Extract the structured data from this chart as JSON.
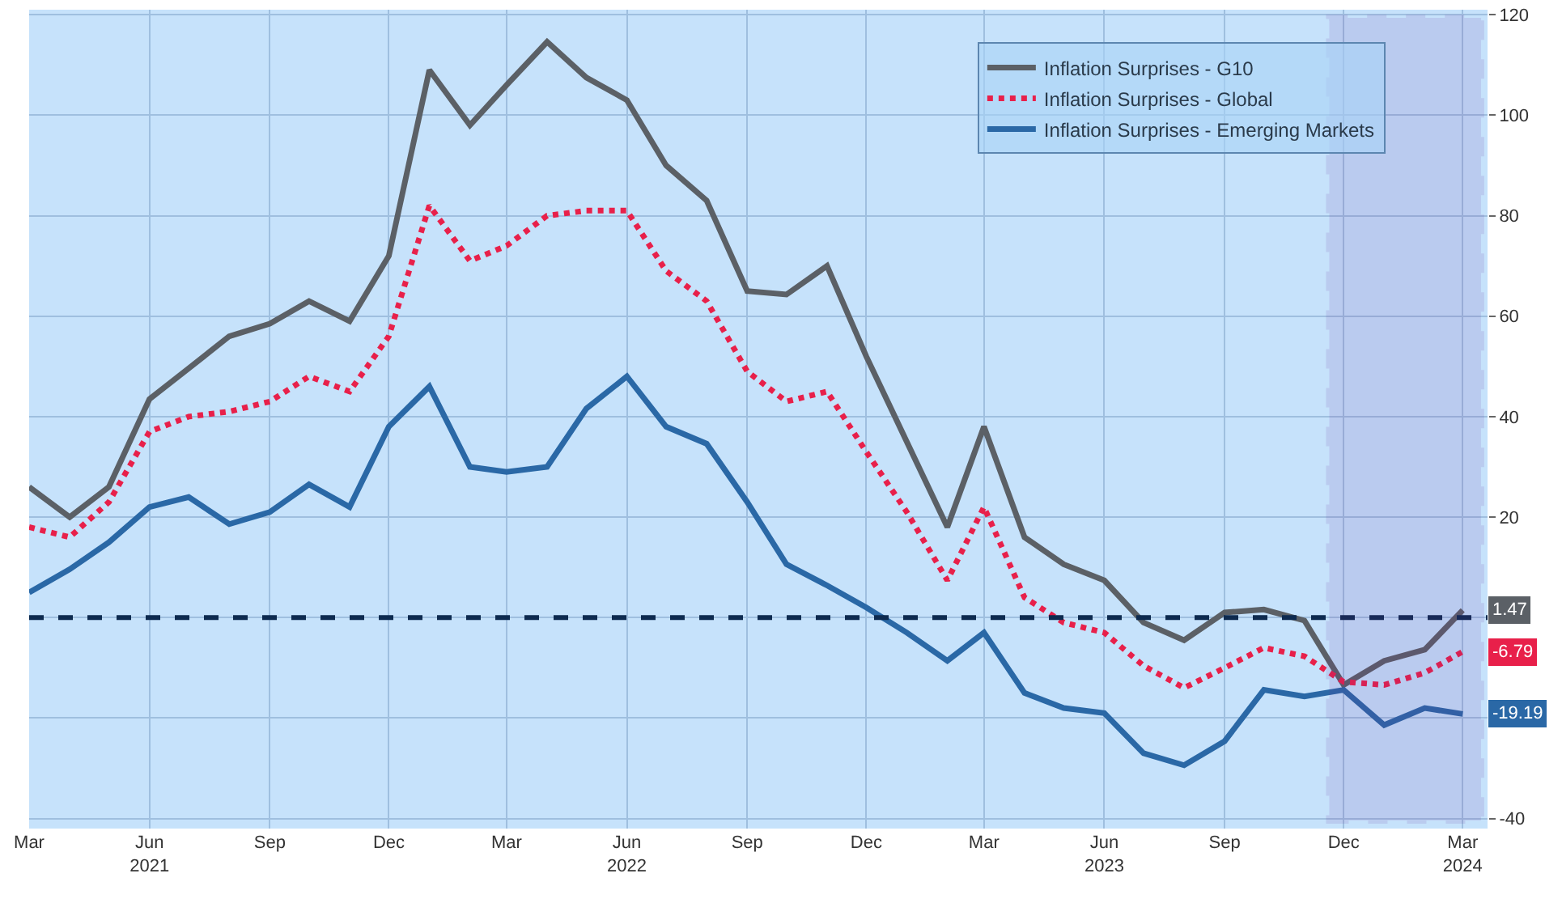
{
  "chart_data": {
    "type": "line",
    "x": [
      "2021-03",
      "2021-04",
      "2021-05",
      "2021-06",
      "2021-07",
      "2021-08",
      "2021-09",
      "2021-10",
      "2021-11",
      "2021-12",
      "2022-01",
      "2022-02",
      "2022-03",
      "2022-04",
      "2022-05",
      "2022-06",
      "2022-07",
      "2022-08",
      "2022-09",
      "2022-10",
      "2022-11",
      "2022-12",
      "2023-01",
      "2023-02",
      "2023-03",
      "2023-04",
      "2023-05",
      "2023-06",
      "2023-07",
      "2023-08",
      "2023-09",
      "2023-10",
      "2023-11",
      "2023-12",
      "2024-01",
      "2024-02",
      "2024-03"
    ],
    "series": [
      {
        "name": "Inflation Surprises - G10",
        "color": "#5b6066",
        "line_style": "solid",
        "values": [
          26,
          20,
          26,
          43.5,
          49.6,
          56,
          58.5,
          63,
          59,
          72,
          109,
          98,
          106,
          114.6,
          107.5,
          103,
          90,
          83,
          65,
          64.3,
          70,
          52,
          35,
          18,
          38,
          16,
          10.6,
          7.4,
          -1,
          -4.5,
          1,
          1.6,
          -0.6,
          -13.4,
          -8.6,
          -6.4,
          1.47
        ],
        "value_labels": [
          null,
          null,
          null,
          null,
          null,
          null,
          null,
          null,
          null,
          null,
          null,
          null,
          null,
          null,
          null,
          null,
          null,
          null,
          null,
          null,
          null,
          null,
          null,
          null,
          null,
          null,
          null,
          null,
          null,
          null,
          null,
          null,
          null,
          null,
          null,
          null,
          "1.47"
        ]
      },
      {
        "name": "Inflation Surprises - Global",
        "color": "#e8204a",
        "line_style": "dotted",
        "values": [
          18,
          16,
          23,
          37,
          40,
          41,
          43,
          48,
          45,
          56,
          82,
          71,
          74,
          80,
          81,
          81,
          69,
          63,
          49,
          43,
          45,
          33,
          21,
          7.4,
          22,
          4,
          -1,
          -3,
          -9.6,
          -14,
          -10,
          -6,
          -7.7,
          -12.8,
          -13.4,
          -11,
          -6.79
        ],
        "value_labels": [
          null,
          null,
          null,
          null,
          null,
          null,
          null,
          null,
          null,
          null,
          null,
          null,
          null,
          null,
          null,
          null,
          null,
          null,
          null,
          null,
          null,
          null,
          null,
          null,
          null,
          null,
          null,
          null,
          null,
          null,
          null,
          null,
          null,
          null,
          null,
          null,
          "-6.79"
        ]
      },
      {
        "name": "Inflation Surprises - Emerging Markets",
        "color": "#2a68a6",
        "line_style": "solid",
        "values": [
          5,
          9.6,
          15,
          22,
          24,
          18.6,
          21,
          26.5,
          22,
          38,
          46,
          30,
          29,
          30,
          41.6,
          48,
          38,
          34.6,
          23,
          10.6,
          6.4,
          2,
          -3,
          -8.6,
          -3,
          -15,
          -18,
          -19,
          -27,
          -29.4,
          -24.6,
          -14.4,
          -15.7,
          -14.4,
          -21.4,
          -18,
          -19.19
        ],
        "value_labels": [
          null,
          null,
          null,
          null,
          null,
          null,
          null,
          null,
          null,
          null,
          null,
          null,
          null,
          null,
          null,
          null,
          null,
          null,
          null,
          null,
          null,
          null,
          null,
          null,
          null,
          null,
          null,
          null,
          null,
          null,
          null,
          null,
          null,
          null,
          null,
          null,
          "-19.19"
        ]
      }
    ],
    "xlim": [
      "2021-03-01",
      "2024-03-20"
    ],
    "xticks": [
      {
        "value": "2021-03",
        "label": "Mar"
      },
      {
        "value": "2021-06",
        "label": "Jun\n2021"
      },
      {
        "value": "2021-09",
        "label": "Sep"
      },
      {
        "value": "2021-12",
        "label": "Dec"
      },
      {
        "value": "2022-03",
        "label": "Mar"
      },
      {
        "value": "2022-06",
        "label": "Jun\n2022"
      },
      {
        "value": "2022-09",
        "label": "Sep"
      },
      {
        "value": "2022-12",
        "label": "Dec"
      },
      {
        "value": "2023-03",
        "label": "Mar"
      },
      {
        "value": "2023-06",
        "label": "Jun\n2023"
      },
      {
        "value": "2023-09",
        "label": "Sep"
      },
      {
        "value": "2023-12",
        "label": "Dec"
      },
      {
        "value": "2024-03",
        "label": "Mar\n2024"
      }
    ],
    "ylim": [
      -42,
      121
    ],
    "yticks": [
      -40,
      {
        "value": -20,
        "label": null
      },
      {
        "value": 0,
        "label": null
      },
      20,
      40,
      60,
      80,
      100,
      120
    ],
    "grid": true,
    "legend": "top right",
    "marker": "none",
    "ref_lines": [
      {
        "axis": "y",
        "value": 0,
        "color": "#0d2a4f",
        "line_style": "dashed"
      }
    ],
    "bands": [
      {
        "axis": "x",
        "from": "2023-11-20",
        "to": "2024-03-15",
        "color": "#6a2c9e"
      }
    ]
  }
}
